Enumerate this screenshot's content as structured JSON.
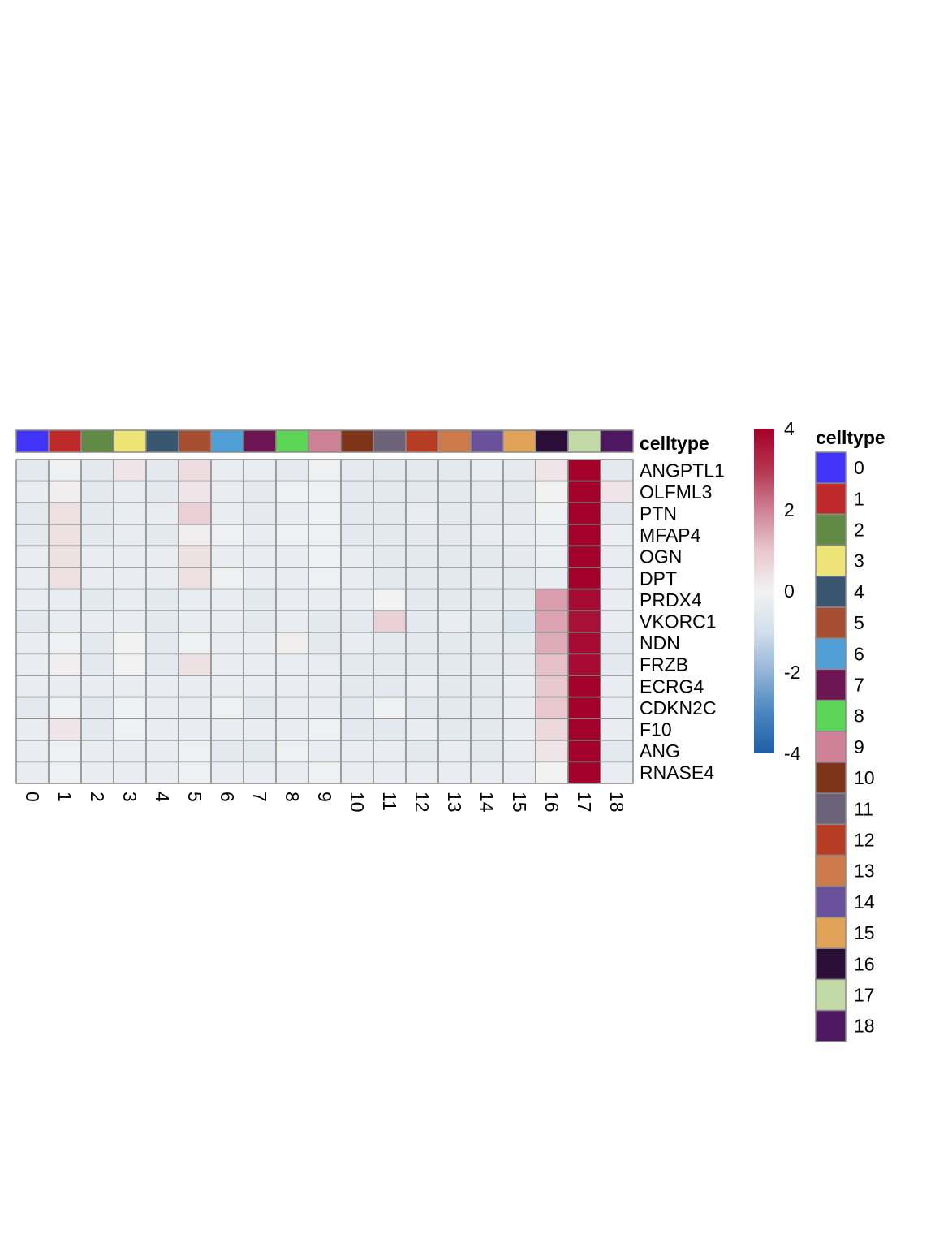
{
  "chart_data": {
    "type": "heatmap",
    "annotation_label": "celltype",
    "legend_title": "celltype",
    "columns": [
      "0",
      "1",
      "2",
      "3",
      "4",
      "5",
      "6",
      "7",
      "8",
      "9",
      "10",
      "11",
      "12",
      "13",
      "14",
      "15",
      "16",
      "17",
      "18"
    ],
    "column_colors": [
      "#4233F9",
      "#C0292A",
      "#618A45",
      "#EEE376",
      "#38566F",
      "#A84E30",
      "#4F9FD6",
      "#6D1452",
      "#5CD456",
      "#CF8297",
      "#7E3419",
      "#6D6378",
      "#B83C24",
      "#CD7A4A",
      "#6A519B",
      "#E0A358",
      "#2B0E38",
      "#C2DAA7",
      "#4E1761"
    ],
    "rows": [
      "ANGPTL1",
      "OLFML3",
      "PTN",
      "MFAP4",
      "OGN",
      "DPT",
      "PRDX4",
      "VKORC1",
      "NDN",
      "FRZB",
      "ECRG4",
      "CDKN2C",
      "F10",
      "ANG",
      "RNASE4"
    ],
    "values": [
      [
        -0.5,
        -0.1,
        -0.5,
        0.3,
        -0.5,
        0.5,
        -0.3,
        -0.3,
        -0.4,
        -0.1,
        -0.4,
        -0.5,
        -0.5,
        -0.5,
        -0.3,
        -0.4,
        0.3,
        4.0,
        -0.5
      ],
      [
        -0.3,
        0.1,
        -0.5,
        -0.3,
        -0.5,
        0.3,
        -0.3,
        -0.4,
        -0.1,
        -0.1,
        -0.5,
        -0.5,
        -0.5,
        -0.5,
        -0.4,
        -0.5,
        0.0,
        4.0,
        0.3
      ],
      [
        -0.5,
        0.4,
        -0.5,
        -0.3,
        -0.3,
        0.8,
        -0.3,
        -0.4,
        -0.3,
        -0.1,
        -0.5,
        -0.5,
        -0.3,
        -0.5,
        -0.4,
        -0.4,
        -0.1,
        4.0,
        -0.5
      ],
      [
        -0.5,
        0.4,
        -0.5,
        -0.3,
        -0.5,
        0.1,
        -0.1,
        -0.3,
        -0.1,
        -0.1,
        -0.5,
        -0.5,
        -0.4,
        -0.4,
        -0.3,
        -0.3,
        -0.2,
        4.0,
        -0.2
      ],
      [
        -0.3,
        0.4,
        -0.3,
        -0.3,
        -0.3,
        0.4,
        -0.3,
        -0.3,
        -0.3,
        -0.1,
        -0.3,
        -0.5,
        -0.5,
        -0.5,
        -0.5,
        -0.4,
        -0.2,
        4.0,
        -0.3
      ],
      [
        -0.3,
        0.4,
        -0.3,
        -0.3,
        -0.3,
        0.4,
        -0.1,
        -0.3,
        -0.3,
        -0.1,
        -0.3,
        -0.5,
        -0.5,
        -0.5,
        -0.4,
        -0.5,
        -0.3,
        4.0,
        -0.3
      ],
      [
        -0.3,
        -0.3,
        -0.5,
        -0.3,
        -0.5,
        -0.3,
        -0.3,
        -0.5,
        -0.3,
        -0.3,
        -0.3,
        0.0,
        -0.5,
        -0.5,
        -0.5,
        -0.5,
        1.6,
        3.8,
        -0.3
      ],
      [
        -0.5,
        -0.3,
        -0.3,
        -0.3,
        -0.5,
        -0.3,
        -0.3,
        -0.5,
        -0.3,
        -0.5,
        -0.5,
        0.8,
        -0.5,
        -0.3,
        -0.5,
        -0.7,
        1.5,
        3.7,
        -0.3
      ],
      [
        -0.3,
        -0.1,
        -0.5,
        0.0,
        -0.5,
        -0.1,
        -0.3,
        -0.3,
        0.1,
        -0.5,
        -0.3,
        -0.5,
        -0.5,
        -0.5,
        -0.5,
        -0.5,
        1.4,
        3.8,
        -0.5
      ],
      [
        -0.3,
        0.1,
        -0.5,
        0.0,
        -0.5,
        0.4,
        -0.3,
        -0.3,
        -0.3,
        -0.3,
        -0.5,
        -0.5,
        -0.5,
        -0.5,
        -0.5,
        -0.4,
        1.1,
        3.8,
        -0.5
      ],
      [
        -0.3,
        -0.3,
        -0.3,
        -0.3,
        -0.3,
        -0.3,
        -0.3,
        -0.3,
        -0.3,
        -0.3,
        -0.5,
        -0.5,
        -0.3,
        -0.5,
        -0.5,
        -0.3,
        1.0,
        4.0,
        -0.3
      ],
      [
        -0.5,
        -0.1,
        -0.5,
        -0.1,
        -0.3,
        -0.3,
        -0.1,
        -0.5,
        -0.3,
        -0.3,
        -0.5,
        -0.1,
        -0.5,
        -0.5,
        -0.5,
        -0.3,
        1.0,
        4.0,
        -0.3
      ],
      [
        -0.3,
        0.3,
        -0.5,
        -0.1,
        -0.3,
        -0.3,
        -0.3,
        -0.3,
        -0.3,
        -0.1,
        -0.5,
        -0.5,
        -0.3,
        -0.5,
        -0.5,
        -0.3,
        0.6,
        4.0,
        -0.3
      ],
      [
        -0.3,
        -0.1,
        -0.3,
        -0.3,
        -0.3,
        -0.1,
        -0.5,
        -0.5,
        -0.1,
        -0.3,
        -0.3,
        -0.3,
        -0.5,
        -0.3,
        -0.5,
        -0.3,
        0.3,
        4.0,
        -0.5
      ],
      [
        -0.3,
        -0.1,
        -0.3,
        -0.3,
        -0.3,
        -0.1,
        -0.3,
        -0.3,
        -0.3,
        -0.1,
        -0.3,
        -0.3,
        -0.3,
        -0.3,
        -0.3,
        -0.3,
        0.0,
        4.0,
        -0.3
      ]
    ],
    "colorbar": {
      "min": -4,
      "max": 4,
      "ticks": [
        "4",
        "2",
        "0",
        "-2",
        "-4"
      ],
      "tick_values": [
        4,
        2,
        0,
        -2,
        -4
      ]
    },
    "color_scale": [
      "#1F5EA8",
      "#4A85C0",
      "#93B4D8",
      "#D3DFEC",
      "#F2F2F2",
      "#E8C7CF",
      "#CF8197",
      "#B53450",
      "#A3002A"
    ]
  }
}
